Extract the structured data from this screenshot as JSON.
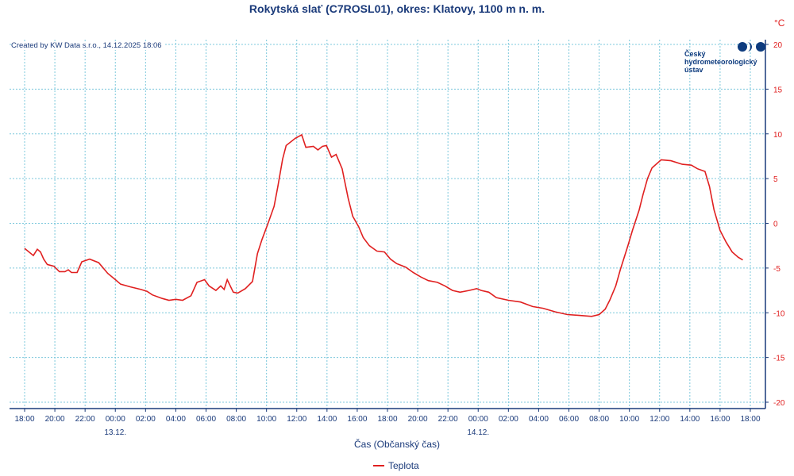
{
  "chart_data": {
    "type": "line",
    "title": "Rokytská slať (C7ROSL01), okres: Klatovy, 1100 m n. m.",
    "created": "Created by KW Data s.r.o., 14.12.2025 18:06",
    "logo": {
      "line1": "Český",
      "line2": "hydrometeorologický",
      "line3": "ústav"
    },
    "ylabel": "°C",
    "xlabel": "Čas (Občanský čas)",
    "ylim": [
      -20,
      20
    ],
    "yticks": [
      20,
      15,
      10,
      5,
      0,
      -5,
      -10,
      -15,
      -20
    ],
    "xticks": [
      "18:00",
      "20:00",
      "22:00",
      "00:00",
      "02:00",
      "04:00",
      "06:00",
      "08:00",
      "10:00",
      "12:00",
      "14:00",
      "16:00",
      "18:00",
      "20:00",
      "22:00",
      "00:00",
      "02:00",
      "04:00",
      "06:00",
      "08:00",
      "10:00",
      "12:00",
      "14:00",
      "16:00",
      "18:00"
    ],
    "date_labels": [
      {
        "tick": 3,
        "label": "13.12."
      },
      {
        "tick": 15,
        "label": "14.12."
      }
    ],
    "xlim_hours": [
      0,
      48
    ],
    "legend": "top-bottom-center",
    "series": [
      {
        "name": "Teplota",
        "color": "#e02020",
        "x_hours": [
          0,
          0.58,
          0.84,
          1.05,
          1.26,
          1.5,
          1.94,
          2.3,
          2.67,
          2.89,
          3.1,
          3.47,
          3.78,
          4.3,
          4.9,
          5.5,
          6.0,
          6.35,
          7.0,
          7.7,
          8.1,
          8.45,
          9.1,
          9.55,
          10.0,
          10.45,
          11.0,
          11.4,
          11.9,
          12.2,
          12.65,
          12.97,
          13.2,
          13.4,
          13.8,
          14.1,
          14.6,
          15.07,
          15.4,
          15.7,
          16.1,
          16.5,
          16.75,
          17.07,
          17.3,
          17.9,
          18.33,
          18.6,
          19.1,
          19.4,
          19.7,
          19.96,
          20.3,
          20.6,
          21.0,
          21.4,
          21.7,
          22.1,
          22.4,
          22.8,
          23.3,
          23.8,
          24.2,
          24.6,
          25.2,
          25.7,
          26.2,
          26.7,
          27.3,
          27.8,
          28.3,
          28.8,
          29.4,
          29.9,
          30.2,
          30.7,
          31.2,
          32.0,
          32.8,
          33.6,
          34.3,
          35.1,
          35.9,
          36.7,
          37.5,
          38.0,
          38.4,
          38.7,
          39.1,
          39.4,
          39.9,
          40.2,
          40.65,
          40.9,
          41.2,
          41.5,
          42.1,
          42.75,
          43.5,
          44.1,
          44.5,
          45.0,
          45.3,
          45.6,
          46.0,
          46.4,
          46.8,
          47.2,
          47.5
        ],
        "values": [
          -2.8,
          -3.6,
          -2.9,
          -3.2,
          -4.0,
          -4.6,
          -4.8,
          -5.4,
          -5.4,
          -5.2,
          -5.5,
          -5.5,
          -4.3,
          -4.0,
          -4.4,
          -5.6,
          -6.3,
          -6.8,
          -7.1,
          -7.4,
          -7.6,
          -8.0,
          -8.4,
          -8.6,
          -8.5,
          -8.6,
          -8.1,
          -6.6,
          -6.3,
          -7.0,
          -7.5,
          -7.0,
          -7.4,
          -6.3,
          -7.7,
          -7.8,
          -7.3,
          -6.5,
          -3.4,
          -1.8,
          0.0,
          1.9,
          4.1,
          7.2,
          8.7,
          9.5,
          9.9,
          8.5,
          8.6,
          8.2,
          8.6,
          8.7,
          7.4,
          7.7,
          6.1,
          2.8,
          0.8,
          -0.4,
          -1.6,
          -2.5,
          -3.1,
          -3.2,
          -4.0,
          -4.5,
          -4.9,
          -5.5,
          -6.0,
          -6.4,
          -6.6,
          -7.0,
          -7.5,
          -7.7,
          -7.5,
          -7.3,
          -7.5,
          -7.7,
          -8.3,
          -8.6,
          -8.8,
          -9.3,
          -9.5,
          -9.9,
          -10.2,
          -10.3,
          -10.4,
          -10.2,
          -9.6,
          -8.6,
          -7.0,
          -5.2,
          -2.5,
          -0.8,
          1.5,
          3.2,
          5.0,
          6.2,
          7.1,
          7.0,
          6.6,
          6.5,
          6.1,
          5.8,
          4.1,
          1.5,
          -0.8,
          -2.1,
          -3.2,
          -3.8,
          -4.1
        ]
      }
    ]
  }
}
